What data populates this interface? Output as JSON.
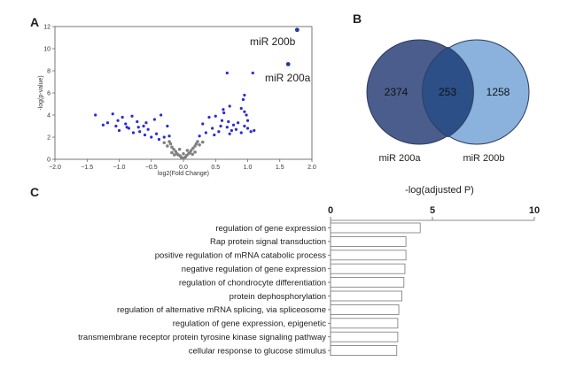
{
  "panels": {
    "a": "A",
    "b": "B",
    "c": "C"
  },
  "chart_data": [
    {
      "type": "scatter",
      "xlabel": "log2(Fold Change)",
      "ylabel": "-log(p-value)",
      "xlim": [
        -2.0,
        2.0
      ],
      "ylim": [
        0,
        12
      ],
      "xticks": [
        "−2.0",
        "−1.5",
        "−1.0",
        "−0.5",
        "0.0",
        "0.5",
        "1.0",
        "1.5",
        "2.0"
      ],
      "yticks": [
        "0",
        "2",
        "4",
        "6",
        "8",
        "10",
        "12"
      ],
      "colors": {
        "significant": "#2b2bd6",
        "nonsignificant": "#808080",
        "highlight": "#1a3fa0"
      },
      "annotations": [
        {
          "text": "miR 200b",
          "x": 1.77,
          "y": 11.7
        },
        {
          "text": "miR 200a",
          "x": 1.63,
          "y": 8.6
        }
      ],
      "highlighted_points": [
        {
          "x": 1.77,
          "y": 11.7
        },
        {
          "x": 1.63,
          "y": 8.6
        }
      ],
      "significant_points": [
        {
          "x": -1.37,
          "y": 4.0
        },
        {
          "x": -1.25,
          "y": 3.1
        },
        {
          "x": -1.18,
          "y": 3.3
        },
        {
          "x": -1.1,
          "y": 4.1
        },
        {
          "x": -1.05,
          "y": 3.0
        },
        {
          "x": -1.0,
          "y": 2.6
        },
        {
          "x": -0.95,
          "y": 3.8
        },
        {
          "x": -0.9,
          "y": 3.2
        },
        {
          "x": -0.85,
          "y": 2.8
        },
        {
          "x": -0.8,
          "y": 3.9
        },
        {
          "x": -0.78,
          "y": 2.4
        },
        {
          "x": -0.72,
          "y": 3.4
        },
        {
          "x": -0.68,
          "y": 2.5
        },
        {
          "x": -0.62,
          "y": 3.0
        },
        {
          "x": -0.6,
          "y": 2.2
        },
        {
          "x": -0.55,
          "y": 2.7
        },
        {
          "x": -0.5,
          "y": 2.0
        },
        {
          "x": -0.45,
          "y": 3.6
        },
        {
          "x": -0.42,
          "y": 2.3
        },
        {
          "x": -0.38,
          "y": 1.8
        },
        {
          "x": -0.35,
          "y": 4.0
        },
        {
          "x": -0.3,
          "y": 2.0
        },
        {
          "x": -0.25,
          "y": 3.0
        },
        {
          "x": -0.22,
          "y": 2.1
        },
        {
          "x": -1.02,
          "y": 3.5
        },
        {
          "x": -0.88,
          "y": 2.9
        },
        {
          "x": -0.7,
          "y": 2.9
        },
        {
          "x": -0.58,
          "y": 3.3
        },
        {
          "x": 0.25,
          "y": 2.1
        },
        {
          "x": 0.3,
          "y": 3.2
        },
        {
          "x": 0.35,
          "y": 2.4
        },
        {
          "x": 0.4,
          "y": 3.8
        },
        {
          "x": 0.45,
          "y": 2.8
        },
        {
          "x": 0.5,
          "y": 3.9
        },
        {
          "x": 0.55,
          "y": 2.5
        },
        {
          "x": 0.6,
          "y": 3.5
        },
        {
          "x": 0.63,
          "y": 4.2
        },
        {
          "x": 0.68,
          "y": 2.9
        },
        {
          "x": 0.7,
          "y": 3.4
        },
        {
          "x": 0.75,
          "y": 2.6
        },
        {
          "x": 0.78,
          "y": 3.1
        },
        {
          "x": 0.82,
          "y": 2.7
        },
        {
          "x": 0.85,
          "y": 3.3
        },
        {
          "x": 0.9,
          "y": 2.4
        },
        {
          "x": 0.95,
          "y": 3.0
        },
        {
          "x": 1.0,
          "y": 2.8
        },
        {
          "x": 1.05,
          "y": 2.5
        },
        {
          "x": 1.1,
          "y": 2.6
        },
        {
          "x": 0.48,
          "y": 2.2
        },
        {
          "x": 0.58,
          "y": 3.0
        },
        {
          "x": 0.72,
          "y": 2.3
        },
        {
          "x": 0.62,
          "y": 4.5
        },
        {
          "x": 0.72,
          "y": 4.8
        },
        {
          "x": 0.9,
          "y": 4.6
        },
        {
          "x": 0.95,
          "y": 4.3
        },
        {
          "x": 0.68,
          "y": 7.8
        },
        {
          "x": 1.08,
          "y": 7.8
        },
        {
          "x": 0.95,
          "y": 5.8
        },
        {
          "x": 0.93,
          "y": 5.4
        },
        {
          "x": 0.98,
          "y": 4.0
        },
        {
          "x": 1.0,
          "y": 3.5
        }
      ],
      "nonsignificant_points": [
        {
          "x": -0.2,
          "y": 1.4
        },
        {
          "x": -0.18,
          "y": 1.1
        },
        {
          "x": -0.15,
          "y": 0.9
        },
        {
          "x": -0.12,
          "y": 0.7
        },
        {
          "x": -0.1,
          "y": 0.5
        },
        {
          "x": -0.08,
          "y": 0.4
        },
        {
          "x": -0.05,
          "y": 0.3
        },
        {
          "x": -0.03,
          "y": 0.15
        },
        {
          "x": 0.0,
          "y": 0.1
        },
        {
          "x": 0.03,
          "y": 0.2
        },
        {
          "x": 0.05,
          "y": 0.35
        },
        {
          "x": 0.08,
          "y": 0.5
        },
        {
          "x": 0.1,
          "y": 0.6
        },
        {
          "x": 0.12,
          "y": 0.8
        },
        {
          "x": 0.15,
          "y": 1.0
        },
        {
          "x": 0.18,
          "y": 1.2
        },
        {
          "x": 0.2,
          "y": 1.4
        },
        {
          "x": -0.22,
          "y": 1.6
        },
        {
          "x": 0.22,
          "y": 1.6
        },
        {
          "x": -0.14,
          "y": 0.4
        },
        {
          "x": 0.14,
          "y": 0.45
        },
        {
          "x": -0.25,
          "y": 1.2
        },
        {
          "x": 0.25,
          "y": 1.3
        },
        {
          "x": -0.3,
          "y": 1.5
        },
        {
          "x": 0.3,
          "y": 1.55
        },
        {
          "x": -0.06,
          "y": 0.9
        },
        {
          "x": 0.06,
          "y": 0.8
        },
        {
          "x": -0.18,
          "y": 0.6
        },
        {
          "x": 0.18,
          "y": 0.65
        },
        {
          "x": 0.0,
          "y": 0.5
        }
      ]
    },
    {
      "type": "venn",
      "sets": [
        "miR 200a",
        "miR 200b"
      ],
      "counts": {
        "only_a": 2374,
        "both": 253,
        "only_b": 1258
      },
      "colors": {
        "a": "#4a5d8c",
        "b": "#8ab2dc",
        "overlap": "#2b4f86"
      }
    },
    {
      "type": "bar",
      "orientation": "horizontal",
      "title": "-log(adjusted P)",
      "xlim": [
        0,
        10
      ],
      "xticks": [
        "0",
        "5",
        "10"
      ],
      "categories": [
        "regulation of gene expression",
        "Rap protein signal transduction",
        "positive regulation of mRNA catabolic process",
        "negative regulation of gene expression",
        "regulation of chondrocyte differentiation",
        "protein dephosphorylation",
        "regulation of alternative mRNA splicing, via spliceosome",
        "regulation of gene expression, epigenetic",
        "transmembrane receptor protein tyrosine kinase signaling pathway",
        "cellular response to glucose stimulus"
      ],
      "values": [
        4.4,
        3.7,
        3.7,
        3.65,
        3.6,
        3.5,
        3.35,
        3.3,
        3.3,
        3.25
      ]
    }
  ]
}
